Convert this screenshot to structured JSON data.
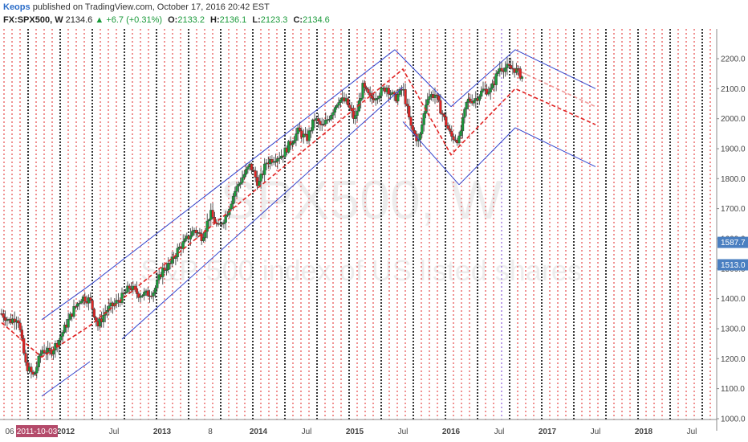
{
  "header": {
    "author": "Keops",
    "published_text": "published on TradingView.com, October 17, 2016 20:42 EST"
  },
  "symbol": {
    "name": "FX:SPX500, W",
    "last": "2134.6",
    "change": "+6.7 (+0.31%)",
    "open_label": "O:",
    "open": "2133.2",
    "high_label": "H:",
    "high": "2136.1",
    "low_label": "L:",
    "low": "2123.3",
    "close_label": "C:",
    "close": "2134.6"
  },
  "watermark": {
    "symbol": "SPX500, W",
    "description": "S&P 500 index of US listed shares"
  },
  "colors": {
    "up": "#1a9a3a",
    "down": "#e02424",
    "channel": "#3344cc",
    "midline": "#e02424",
    "cycle_red": "#e02424",
    "cycle_black": "#000000",
    "cycle_purple": "#7a3fd0",
    "price_badge": "#4a7fc1",
    "date_badge": "#b44a6a"
  },
  "chart_data": {
    "type": "candlestick",
    "y_ticks": [
      "2200.0",
      "2100.0",
      "2000.0",
      "1900.0",
      "1800.0",
      "1700.0",
      "1600.0",
      "1500.0",
      "1400.0",
      "1300.0",
      "1200.0",
      "1100.0",
      "1000.0"
    ],
    "ylim": [
      1000,
      2250
    ],
    "x_labels": [
      {
        "label": "06",
        "x": "2011-06",
        "bold": false
      },
      {
        "label": "2012",
        "x": "2012-01",
        "bold": true
      },
      {
        "label": "Jul",
        "x": "2012-07",
        "bold": false
      },
      {
        "label": "2013",
        "x": "2013-01",
        "bold": true
      },
      {
        "label": "8",
        "x": "2013-07",
        "bold": false
      },
      {
        "label": "2014",
        "x": "2014-01",
        "bold": true
      },
      {
        "label": "Jul",
        "x": "2014-07",
        "bold": false
      },
      {
        "label": "2015",
        "x": "2015-01",
        "bold": true
      },
      {
        "label": "Jul",
        "x": "2015-07",
        "bold": false
      },
      {
        "label": "2016",
        "x": "2016-01",
        "bold": true
      },
      {
        "label": "Jul",
        "x": "2016-07",
        "bold": false
      },
      {
        "label": "2017",
        "x": "2017-01",
        "bold": true
      },
      {
        "label": "Jul",
        "x": "2017-07",
        "bold": false
      },
      {
        "label": "2018",
        "x": "2018-01",
        "bold": true
      },
      {
        "label": "Jul",
        "x": "2018-07",
        "bold": false
      }
    ],
    "price_markers": [
      {
        "label": "1587.7",
        "value": 1587.7
      },
      {
        "label": "1513.0",
        "value": 1513.0
      }
    ],
    "date_marker": {
      "label": "2011-10-03",
      "x": "2011-10"
    },
    "price_path": [
      [
        "2011-05",
        1350
      ],
      [
        "2011-06",
        1325
      ],
      [
        "2011-07",
        1340
      ],
      [
        "2011-08",
        1180
      ],
      [
        "2011-09",
        1140
      ],
      [
        "2011-10",
        1230
      ],
      [
        "2011-11",
        1220
      ],
      [
        "2011-12",
        1255
      ],
      [
        "2012-01",
        1310
      ],
      [
        "2012-02",
        1365
      ],
      [
        "2012-03",
        1405
      ],
      [
        "2012-04",
        1395
      ],
      [
        "2012-05",
        1310
      ],
      [
        "2012-06",
        1360
      ],
      [
        "2012-07",
        1380
      ],
      [
        "2012-08",
        1405
      ],
      [
        "2012-09",
        1440
      ],
      [
        "2012-10",
        1415
      ],
      [
        "2012-11",
        1415
      ],
      [
        "2012-12",
        1425
      ],
      [
        "2013-01",
        1495
      ],
      [
        "2013-02",
        1515
      ],
      [
        "2013-03",
        1565
      ],
      [
        "2013-04",
        1595
      ],
      [
        "2013-05",
        1630
      ],
      [
        "2013-06",
        1605
      ],
      [
        "2013-07",
        1685
      ],
      [
        "2013-08",
        1635
      ],
      [
        "2013-09",
        1680
      ],
      [
        "2013-10",
        1755
      ],
      [
        "2013-11",
        1805
      ],
      [
        "2013-12",
        1845
      ],
      [
        "2014-01",
        1780
      ],
      [
        "2014-02",
        1855
      ],
      [
        "2014-03",
        1870
      ],
      [
        "2014-04",
        1880
      ],
      [
        "2014-05",
        1920
      ],
      [
        "2014-06",
        1960
      ],
      [
        "2014-07",
        1930
      ],
      [
        "2014-08",
        2000
      ],
      [
        "2014-09",
        1970
      ],
      [
        "2014-10",
        2015
      ],
      [
        "2014-11",
        2065
      ],
      [
        "2014-12",
        2055
      ],
      [
        "2015-01",
        1995
      ],
      [
        "2015-02",
        2105
      ],
      [
        "2015-03",
        2065
      ],
      [
        "2015-04",
        2085
      ],
      [
        "2015-05",
        2105
      ],
      [
        "2015-06",
        2065
      ],
      [
        "2015-07",
        2100
      ],
      [
        "2015-08",
        1970
      ],
      [
        "2015-09",
        1920
      ],
      [
        "2015-10",
        2075
      ],
      [
        "2015-11",
        2080
      ],
      [
        "2016-01",
        1940
      ],
      [
        "2016-02",
        1930
      ],
      [
        "2016-03",
        2060
      ],
      [
        "2016-04",
        2065
      ],
      [
        "2016-05",
        2095
      ],
      [
        "2016-06",
        2095
      ],
      [
        "2016-07",
        2170
      ],
      [
        "2016-08",
        2170
      ],
      [
        "2016-09",
        2165
      ],
      [
        "2016-10",
        2134.6
      ]
    ],
    "channels": [
      [
        [
          "2011-10",
          1330
        ],
        [
          "2012-04",
          1445
        ]
      ],
      [
        [
          "2011-10",
          1075
        ],
        [
          "2012-04",
          1190
        ]
      ],
      [
        [
          "2012-04",
          1445
        ],
        [
          "2015-06",
          2230
        ]
      ],
      [
        [
          "2012-08",
          1265
        ],
        [
          "2015-07",
          2105
        ]
      ],
      [
        [
          "2015-06",
          2230
        ],
        [
          "2016-01",
          2040
        ]
      ],
      [
        [
          "2015-07",
          1990
        ],
        [
          "2016-02",
          1780
        ]
      ],
      [
        [
          "2016-02",
          1780
        ],
        [
          "2016-09",
          1970
        ]
      ],
      [
        [
          "2016-01",
          2040
        ],
        [
          "2016-09",
          2230
        ]
      ],
      [
        [
          "2016-09",
          2230
        ],
        [
          "2017-07",
          2100
        ]
      ],
      [
        [
          "2016-09",
          1970
        ],
        [
          "2017-07",
          1840
        ]
      ]
    ],
    "midlines": [
      [
        [
          "2011-05",
          1320
        ],
        [
          "2011-10",
          1205
        ],
        [
          "2012-04",
          1310
        ],
        [
          "2015-07",
          2165
        ],
        [
          "2016-01",
          1880
        ],
        [
          "2016-09",
          2100
        ],
        [
          "2017-07",
          1980
        ]
      ]
    ],
    "midlines_faded": [
      [
        [
          "2016-09",
          2165
        ],
        [
          "2017-07",
          2040
        ]
      ]
    ]
  }
}
